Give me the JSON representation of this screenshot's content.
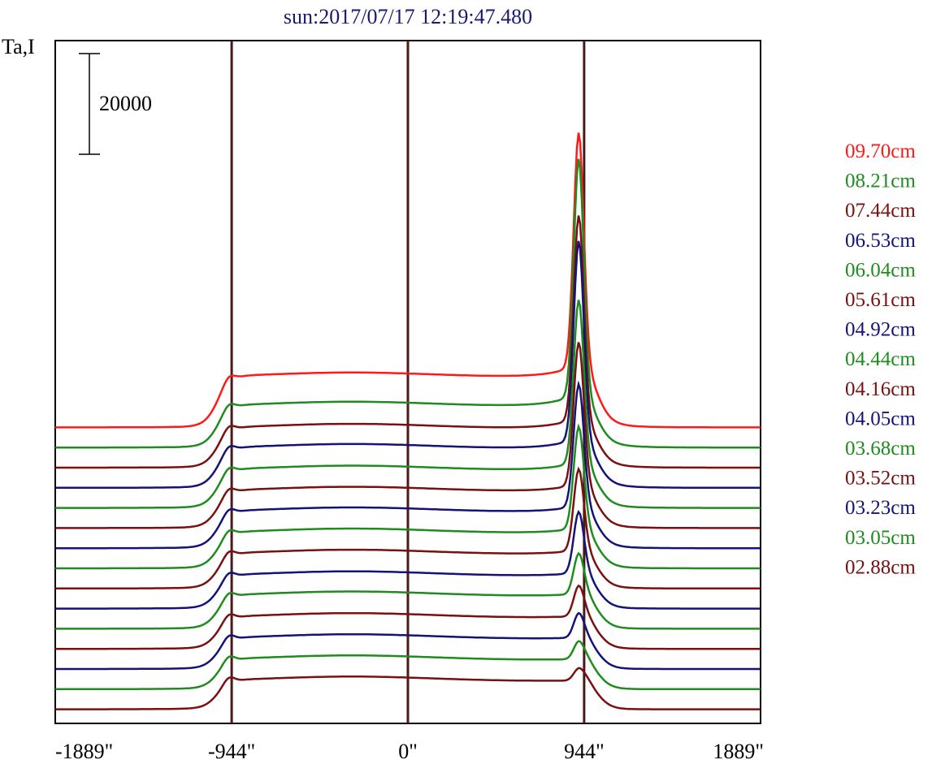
{
  "chart_data": {
    "type": "line",
    "title": "sun:2017/07/17 12:19:47.480",
    "ylabel": "Ta,I",
    "scale_bar_label": "20000",
    "scale_bar_value": 20000,
    "x_ticks": [
      "-1889\"",
      "-944\"",
      "0\"",
      "944\"",
      "1889\""
    ],
    "x_tick_values": [
      -1889,
      -944,
      0,
      944,
      1889
    ],
    "xlim": [
      -1889,
      1889
    ],
    "vertical_markers": [
      -944,
      0,
      944
    ],
    "legend": [
      {
        "label": "09.70cm",
        "color": "#ff1a1a"
      },
      {
        "label": "08.21cm",
        "color": "#1e8c1e"
      },
      {
        "label": "07.44cm",
        "color": "#7a1010"
      },
      {
        "label": "06.53cm",
        "color": "#141478"
      },
      {
        "label": "06.04cm",
        "color": "#1e8c1e"
      },
      {
        "label": "05.61cm",
        "color": "#7a1010"
      },
      {
        "label": "04.92cm",
        "color": "#141478"
      },
      {
        "label": "04.44cm",
        "color": "#1e8c1e"
      },
      {
        "label": "04.16cm",
        "color": "#7a1010"
      },
      {
        "label": "04.05cm",
        "color": "#141478"
      },
      {
        "label": "03.68cm",
        "color": "#1e8c1e"
      },
      {
        "label": "03.52cm",
        "color": "#7a1010"
      },
      {
        "label": "03.23cm",
        "color": "#141478"
      },
      {
        "label": "03.05cm",
        "color": "#1e8c1e"
      },
      {
        "label": "02.88cm",
        "color": "#7a1010"
      }
    ],
    "traces": [
      {
        "color": "#ff1a1a",
        "offset": 58000,
        "limb": 10000,
        "peak": 46000
      },
      {
        "color": "#1e8c1e",
        "offset": 54000,
        "limb": 8200,
        "peak": 46500
      },
      {
        "color": "#7a1010",
        "offset": 50000,
        "limb": 7800,
        "peak": 40000
      },
      {
        "color": "#141478",
        "offset": 46000,
        "limb": 7800,
        "peak": 39000
      },
      {
        "color": "#1e8c1e",
        "offset": 42000,
        "limb": 7500,
        "peak": 32000
      },
      {
        "color": "#7a1010",
        "offset": 38000,
        "limb": 7300,
        "peak": 28000
      },
      {
        "color": "#141478",
        "offset": 34000,
        "limb": 7200,
        "peak": 24000
      },
      {
        "color": "#1e8c1e",
        "offset": 30000,
        "limb": 7000,
        "peak": 20000
      },
      {
        "color": "#7a1010",
        "offset": 26000,
        "limb": 6800,
        "peak": 16000
      },
      {
        "color": "#141478",
        "offset": 22000,
        "limb": 6500,
        "peak": 12000
      },
      {
        "color": "#1e8c1e",
        "offset": 18000,
        "limb": 6500,
        "peak": 8000
      },
      {
        "color": "#7a1010",
        "offset": 14000,
        "limb": 6200,
        "peak": 6000
      },
      {
        "color": "#141478",
        "offset": 10000,
        "limb": 6000,
        "peak": 4800
      },
      {
        "color": "#1e8c1e",
        "offset": 6000,
        "limb": 5800,
        "peak": 3500
      },
      {
        "color": "#7a1010",
        "offset": 2000,
        "limb": 5600,
        "peak": 2400
      }
    ],
    "grid": false,
    "legend_placement": "right"
  }
}
